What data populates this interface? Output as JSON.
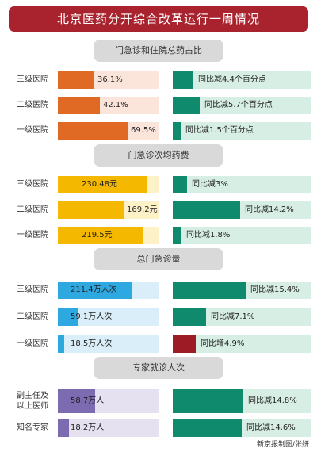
{
  "title": "北京医药分开综合改革运行一周情况",
  "credit": "新京报制图/张妍",
  "colors": {
    "orange": "#e06a24",
    "orange_track": "#fbe5da",
    "yellow": "#f5b800",
    "yellow_track": "#fdf1c8",
    "blue": "#2ea8e0",
    "blue_track": "#d9eef9",
    "purple": "#7c6bb0",
    "purple_track": "#e5e1f0",
    "green": "#0f8a6c",
    "green_track": "#d7eee4",
    "red": "#9c1b25"
  },
  "chart_data": [
    {
      "type": "bar",
      "title": "门急诊和住院总药占比",
      "unit": "%",
      "categories": [
        "三级医院",
        "二级医院",
        "一级医院"
      ],
      "values": [
        36.1,
        42.1,
        69.5
      ],
      "value_labels": [
        "36.1%",
        "42.1%",
        "69.5%"
      ],
      "xlim": [
        0,
        100
      ],
      "bar_color": "orange",
      "change": {
        "labels": [
          "同比减4.4个百分点",
          "同比减5.7个百分点",
          "同比减1.5个百分点"
        ],
        "values": [
          -4.4,
          -5.7,
          -1.5
        ],
        "unit": "个百分点"
      }
    },
    {
      "type": "bar",
      "title": "门急诊次均药费",
      "unit": "元",
      "categories": [
        "三级医院",
        "二级医院",
        "一级医院"
      ],
      "values": [
        230.48,
        169.2,
        219.5
      ],
      "value_labels": [
        "230.48元",
        "169.2元",
        "219.5元"
      ],
      "xlim": [
        0,
        260
      ],
      "bar_color": "yellow",
      "change": {
        "labels": [
          "同比减3%",
          "同比减14.2%",
          "同比减1.8%"
        ],
        "values": [
          -3,
          -14.2,
          -1.8
        ],
        "unit": "%"
      }
    },
    {
      "type": "bar",
      "title": "总门急诊量",
      "unit": "万人次",
      "categories": [
        "三级医院",
        "二级医院",
        "一级医院"
      ],
      "values": [
        211.4,
        59.1,
        18.5
      ],
      "value_labels": [
        "211.4万人次",
        "59.1万人次",
        "18.5万人次"
      ],
      "xlim": [
        0,
        290
      ],
      "bar_color": "blue",
      "change": {
        "labels": [
          "同比减15.4%",
          "同比减7.1%",
          "同比增4.9%"
        ],
        "values": [
          -15.4,
          -7.1,
          4.9
        ],
        "unit": "%"
      }
    },
    {
      "type": "bar",
      "title": "专家就诊人次",
      "unit": "万人",
      "categories": [
        "副主任及\n以上医师",
        "知名专家"
      ],
      "values": [
        58.7,
        18.2
      ],
      "value_labels": [
        "58.7万人",
        "18.2万人"
      ],
      "xlim": [
        0,
        160
      ],
      "bar_color": "purple",
      "change": {
        "labels": [
          "同比减14.8%",
          "同比减14.6%"
        ],
        "values": [
          -14.8,
          -14.6
        ],
        "unit": "%"
      }
    }
  ]
}
